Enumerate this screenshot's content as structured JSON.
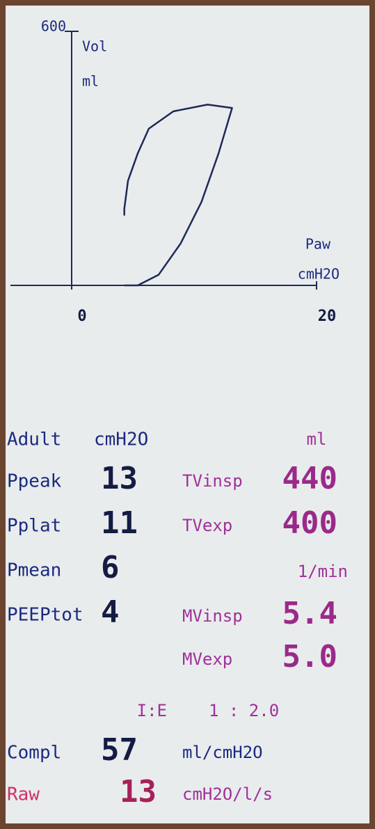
{
  "chart_data": {
    "type": "line",
    "y_label": "Vol",
    "y_unit": "ml",
    "x_label": "Paw",
    "x_unit": "cmH2O",
    "x": [
      4.3,
      5.4,
      7.1,
      8.9,
      10.6,
      12.0,
      13.1,
      11.1,
      8.3,
      6.3,
      5.4,
      4.6,
      4.3,
      4.3
    ],
    "series": [
      {
        "color": "#1c2a58",
        "values": [
          0,
          0,
          25,
          99,
          197,
          312,
          419,
          427,
          411,
          370,
          312,
          247,
          181,
          165
        ]
      }
    ],
    "xlim": [
      -5,
      20
    ],
    "ylim": [
      0,
      600
    ],
    "xticks": [
      0,
      20
    ],
    "yticks": [
      600
    ]
  },
  "readings": {
    "mode": "Adult",
    "pressure_unit": "cmH2O",
    "pressures": [
      {
        "label": "Ppeak",
        "value": "13"
      },
      {
        "label": "Pplat",
        "value": "11"
      },
      {
        "label": "Pmean",
        "value": "6"
      },
      {
        "label": "PEEPtot",
        "value": "4"
      }
    ],
    "volume_unit": "ml",
    "volumes": [
      {
        "label": "TVinsp",
        "value": "440"
      },
      {
        "label": "TVexp",
        "value": "400"
      }
    ],
    "minute_unit": "1/min",
    "minute_volumes": [
      {
        "label": "MVinsp",
        "value": "5.4"
      },
      {
        "label": "MVexp",
        "value": "5.0"
      }
    ],
    "ie_label": "I:E",
    "ie_value": "1 : 2.0",
    "compliance": {
      "label": "Compl",
      "value": "57",
      "unit": "ml/cmH2O"
    },
    "resistance": {
      "label": "Raw",
      "value": "13",
      "unit": "cmH2O/l/s"
    }
  }
}
